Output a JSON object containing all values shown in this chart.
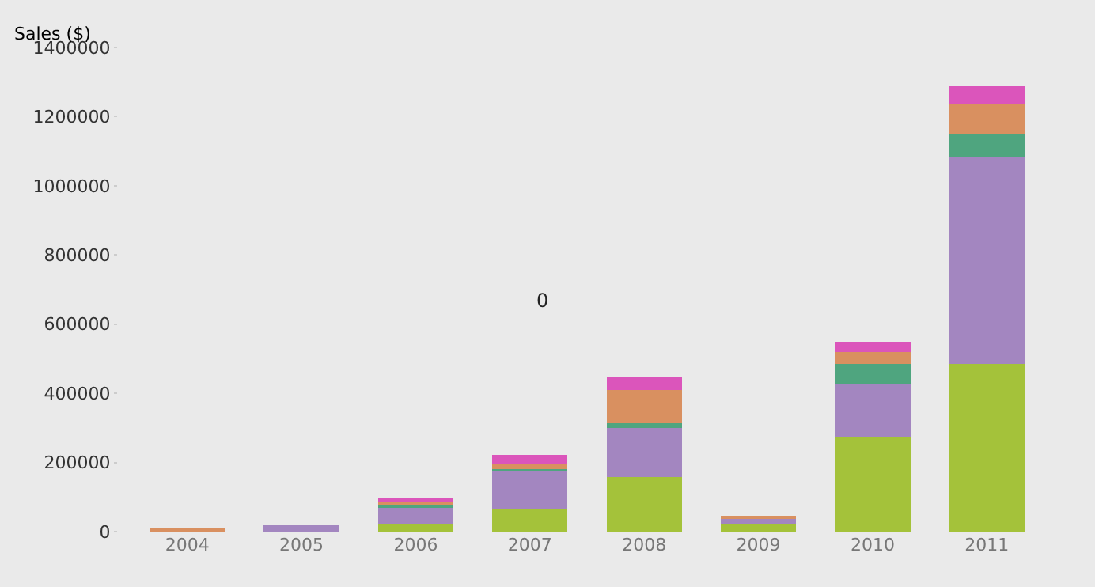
{
  "chart_data": {
    "type": "bar",
    "stacked": true,
    "ylabel": "Sales ($)",
    "categories": [
      "2004",
      "2005",
      "2006",
      "2007",
      "2008",
      "2009",
      "2010",
      "2011"
    ],
    "series": [
      {
        "color": "#a4c23a",
        "values": [
          0,
          1000,
          24000,
          64000,
          159000,
          24000,
          274000,
          486000
        ]
      },
      {
        "color": "#a386c0",
        "values": [
          3000,
          18000,
          48000,
          113000,
          141000,
          16000,
          154000,
          596000
        ]
      },
      {
        "color": "#4fa57f",
        "values": [
          0,
          0,
          8000,
          4000,
          13000,
          0,
          58000,
          68000
        ]
      },
      {
        "color": "#d99060",
        "values": [
          8000,
          0,
          8000,
          16000,
          96000,
          2000,
          34000,
          86000
        ]
      },
      {
        "color": "#db55bb",
        "values": [
          0,
          0,
          8000,
          24000,
          38000,
          0,
          28000,
          53000
        ]
      }
    ],
    "annotations": [
      "0"
    ],
    "ylim": [
      0,
      1400000
    ],
    "yticks": [
      0,
      200000,
      400000,
      600000,
      800000,
      1000000,
      1200000,
      1400000
    ],
    "grid": false
  }
}
